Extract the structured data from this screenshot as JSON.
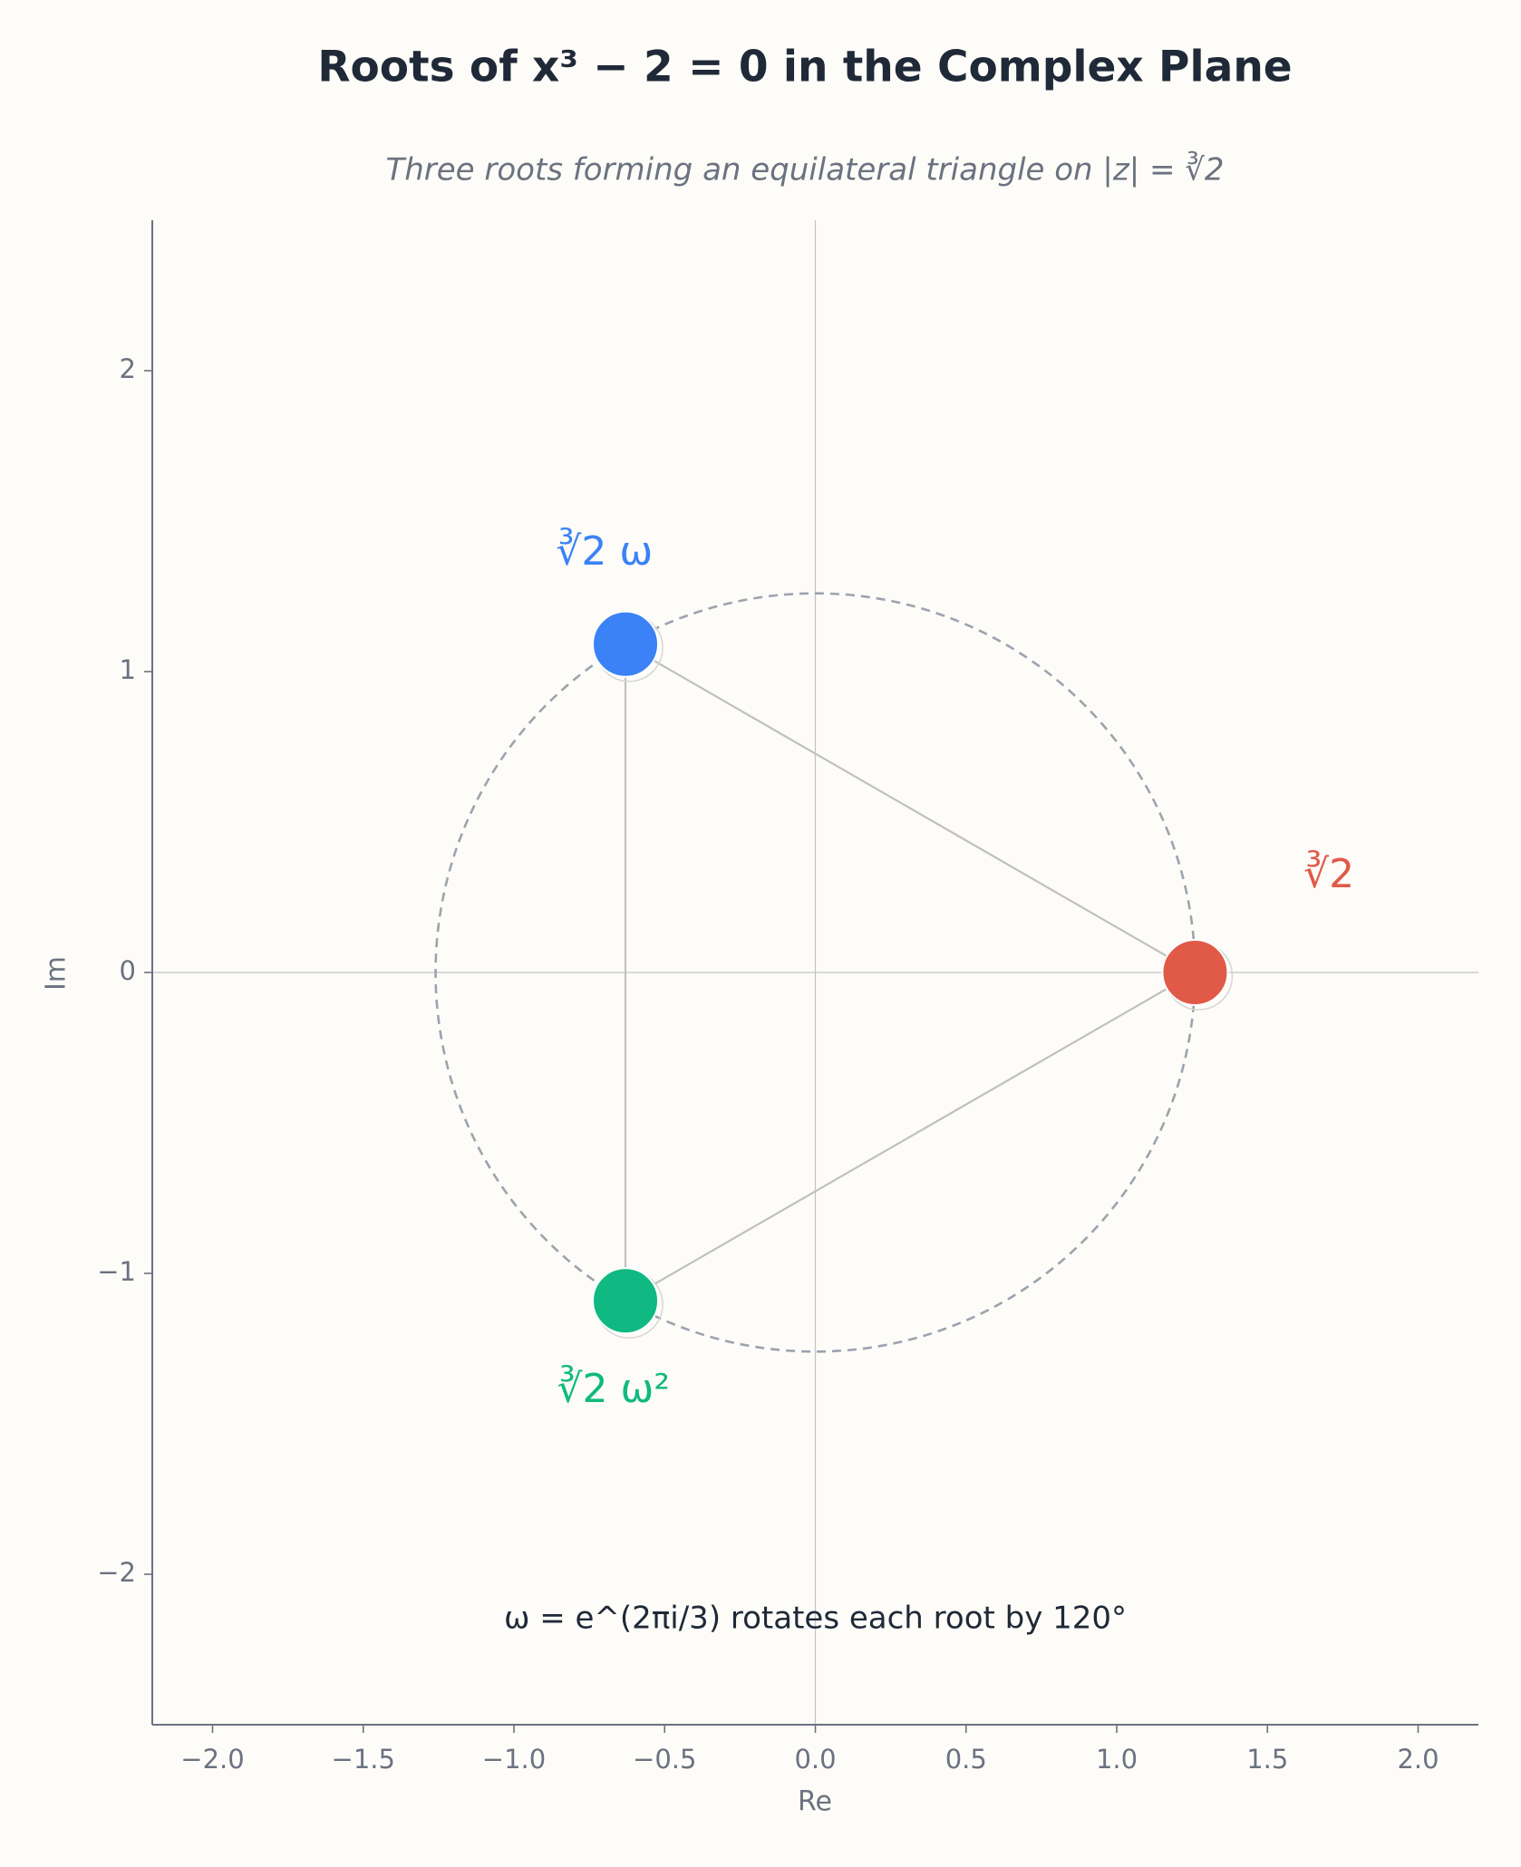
{
  "chart_data": {
    "type": "scatter",
    "title": "Roots of x³ − 2 = 0 in the Complex Plane",
    "subtitle": "Three roots forming an equilateral triangle on |z| = ∛2",
    "x_label": "Re",
    "y_label": "Im",
    "annotation": "ω = e^(2πi/3) rotates each root by 120°",
    "series": [
      {
        "name": "∛2",
        "color": "#e05a47",
        "x": [
          1.26
        ],
        "values": [
          0
        ]
      },
      {
        "name": "∛2 ω",
        "color": "#3b82f6",
        "x": [
          -0.63
        ],
        "values": [
          1.091
        ]
      },
      {
        "name": "∛2 ω²",
        "color": "#10b981",
        "x": [
          -0.63
        ],
        "values": [
          -1.091
        ]
      }
    ],
    "xlim": [
      -2.2,
      2.2
    ],
    "ylim": [
      -2.5,
      2.5
    ],
    "xticks": [
      {
        "value": -2.0,
        "label": "−2.0"
      },
      {
        "value": -1.5,
        "label": "−1.5"
      },
      {
        "value": -1.0,
        "label": "−1.0"
      },
      {
        "value": -0.5,
        "label": "−0.5"
      },
      {
        "value": 0,
        "label": "0.0"
      },
      {
        "value": 0.5,
        "label": "0.5"
      },
      {
        "value": 1.0,
        "label": "1.0"
      },
      {
        "value": 1.5,
        "label": "1.5"
      },
      {
        "value": 2.0,
        "label": "2.0"
      }
    ],
    "yticks": [
      {
        "value": -2,
        "label": "−2"
      },
      {
        "value": -1,
        "label": "−1"
      },
      0,
      1,
      2
    ],
    "grid": false
  }
}
